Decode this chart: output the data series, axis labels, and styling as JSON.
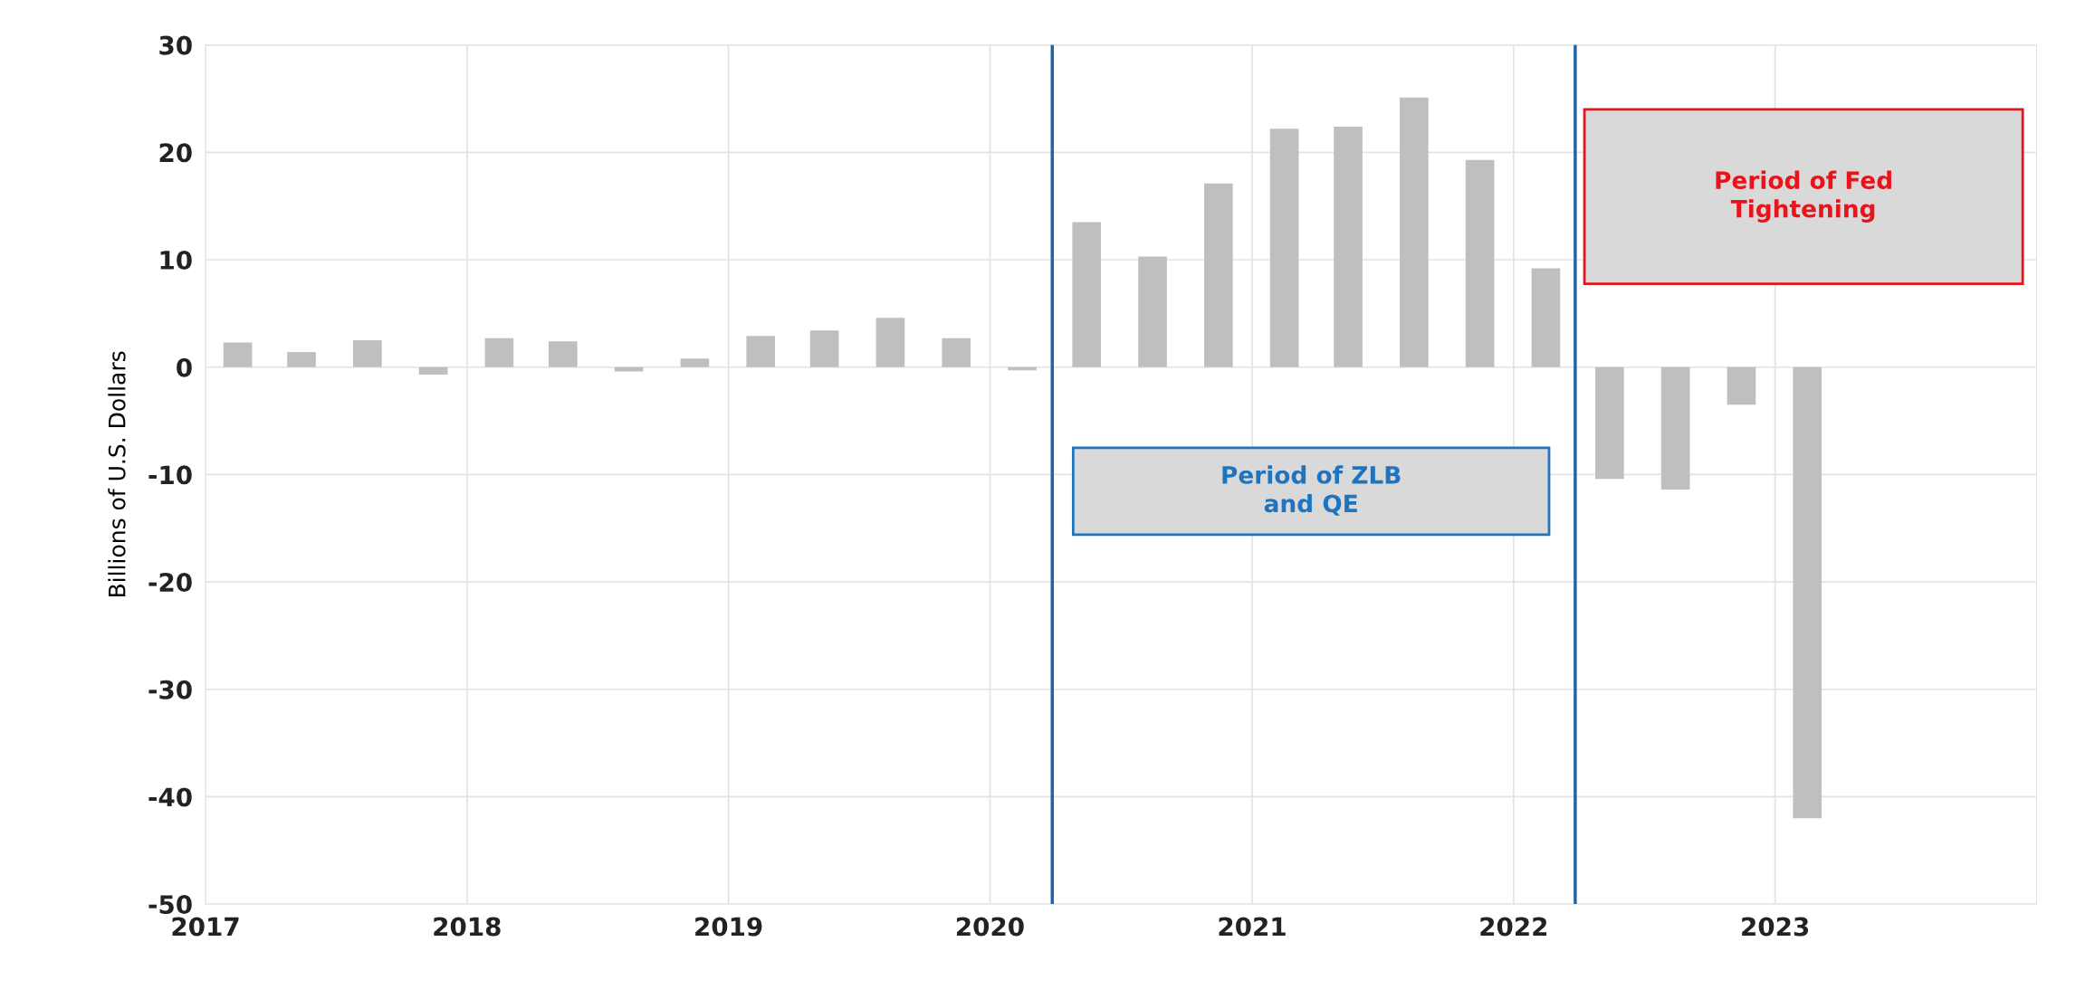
{
  "chart_data": {
    "type": "bar",
    "ylabel": "Billions of U.S. Dollars",
    "x": [
      "2017-02-15",
      "2017-05-15",
      "2017-08-15",
      "2017-11-15",
      "2018-02-15",
      "2018-05-15",
      "2018-08-15",
      "2018-11-15",
      "2019-02-15",
      "2019-05-15",
      "2019-08-15",
      "2019-11-15",
      "2020-02-15",
      "2020-05-15",
      "2020-08-15",
      "2020-11-15",
      "2021-02-15",
      "2021-05-15",
      "2021-08-15",
      "2021-11-15",
      "2022-02-15",
      "2022-05-15",
      "2022-08-15",
      "2022-11-15",
      "2023-02-15"
    ],
    "series": [
      {
        "color": "#bfbfbf",
        "values": [
          2.3,
          1.4,
          2.5,
          -0.7,
          2.7,
          2.4,
          -0.4,
          0.8,
          2.9,
          3.4,
          4.6,
          2.7,
          -0.3,
          13.5,
          10.3,
          17.1,
          22.2,
          22.4,
          25.1,
          19.3,
          9.2,
          -10.4,
          -11.4,
          -3.5,
          -42.0
        ]
      }
    ],
    "xlim": [
      "2017-01-01",
      "2024-01-01"
    ],
    "xticks": [
      "2017",
      "2018",
      "2019",
      "2020",
      "2021",
      "2022",
      "2023"
    ],
    "ylim": [
      -50,
      30
    ],
    "yticks": [
      -50,
      -40,
      -30,
      -20,
      -10,
      0,
      10,
      20,
      30
    ],
    "ref_lines": [
      {
        "axis": "x",
        "value": "2020-03-28",
        "color": "#1f64a6"
      },
      {
        "axis": "x",
        "value": "2022-03-28",
        "color": "#1f64a6"
      }
    ],
    "annotations": [
      "Period of ZLB\nand QE",
      "Period of Fed\nTightening"
    ],
    "grid": true
  }
}
